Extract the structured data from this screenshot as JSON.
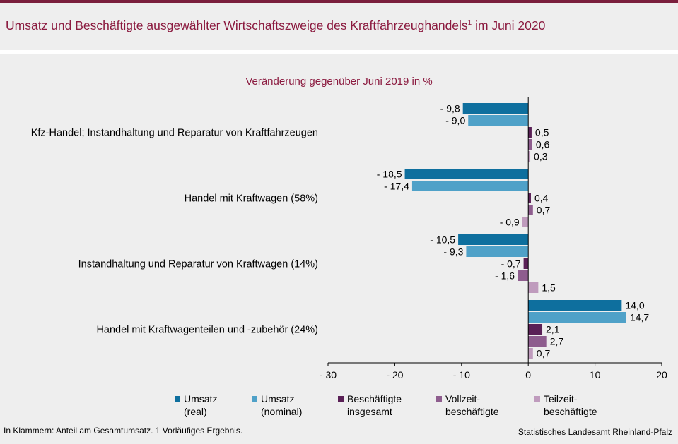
{
  "title": "Umsatz und Beschäftigte ausgewählter Wirtschaftszweige des Kraftfahrzeughandels",
  "title_sup": "1",
  "title_suffix": " im Juni 2020",
  "footer_left": "In Klammern: Anteil am Gesamtumsatz. 1 Vorläufiges Ergebnis.",
  "footer_right": "Statistisches Landesamt Rheinland-Pfalz",
  "chart_data": {
    "type": "bar",
    "orientation": "horizontal",
    "subtitle": "Veränderung gegenüber Juni 2019 in %",
    "categories": [
      "Kfz-Handel; Instandhaltung und Reparatur von Kraftfahrzeugen",
      "Handel mit Kraftwagen (58%)",
      "Instandhaltung und Reparatur von Kraftwagen (14%)",
      "Handel mit Kraftwagenteilen und -zubehör (24%)"
    ],
    "series": [
      {
        "name": "Umsatz (real)",
        "legend_lines": [
          "Umsatz",
          "(real)"
        ],
        "color": "#0e6f9e",
        "values": [
          -9.8,
          -18.5,
          -10.5,
          14.0
        ],
        "labels": [
          "- 9,8",
          "- 18,5",
          "- 10,5",
          "14,0"
        ]
      },
      {
        "name": "Umsatz (nominal)",
        "legend_lines": [
          "Umsatz",
          "(nominal)"
        ],
        "color": "#4fa1c8",
        "values": [
          -9.0,
          -17.4,
          -9.3,
          14.7
        ],
        "labels": [
          "- 9,0",
          "- 17,4",
          "- 9,3",
          "14,7"
        ]
      },
      {
        "name": "Beschäftigte insgesamt",
        "legend_lines": [
          "Beschäftigte",
          "insgesamt"
        ],
        "color": "#5a2056",
        "values": [
          0.5,
          0.4,
          -0.7,
          2.1
        ],
        "labels": [
          "0,5",
          "0,4",
          "- 0,7",
          "2,1"
        ]
      },
      {
        "name": "Vollzeitbeschäftigte",
        "legend_lines": [
          "Vollzeit-",
          "beschäftigte"
        ],
        "color": "#8e5d8e",
        "values": [
          0.6,
          0.7,
          -1.6,
          2.7
        ],
        "labels": [
          "0,6",
          "0,7",
          "- 1,6",
          "2,7"
        ]
      },
      {
        "name": "Teilzeitbeschäftigte",
        "legend_lines": [
          "Teilzeit-",
          "beschäftigte"
        ],
        "color": "#bf9bbd",
        "values": [
          0.3,
          -0.9,
          1.5,
          0.7
        ],
        "labels": [
          "0,3",
          "- 0,9",
          "1,5",
          "0,7"
        ]
      }
    ],
    "xlim": [
      -30,
      20
    ],
    "xticks": [
      -30,
      -20,
      -10,
      0,
      10,
      20
    ],
    "xtick_labels": [
      "- 30",
      "- 20",
      "- 10",
      "0",
      "10",
      "20"
    ],
    "grid": false,
    "legend_position": "bottom"
  }
}
